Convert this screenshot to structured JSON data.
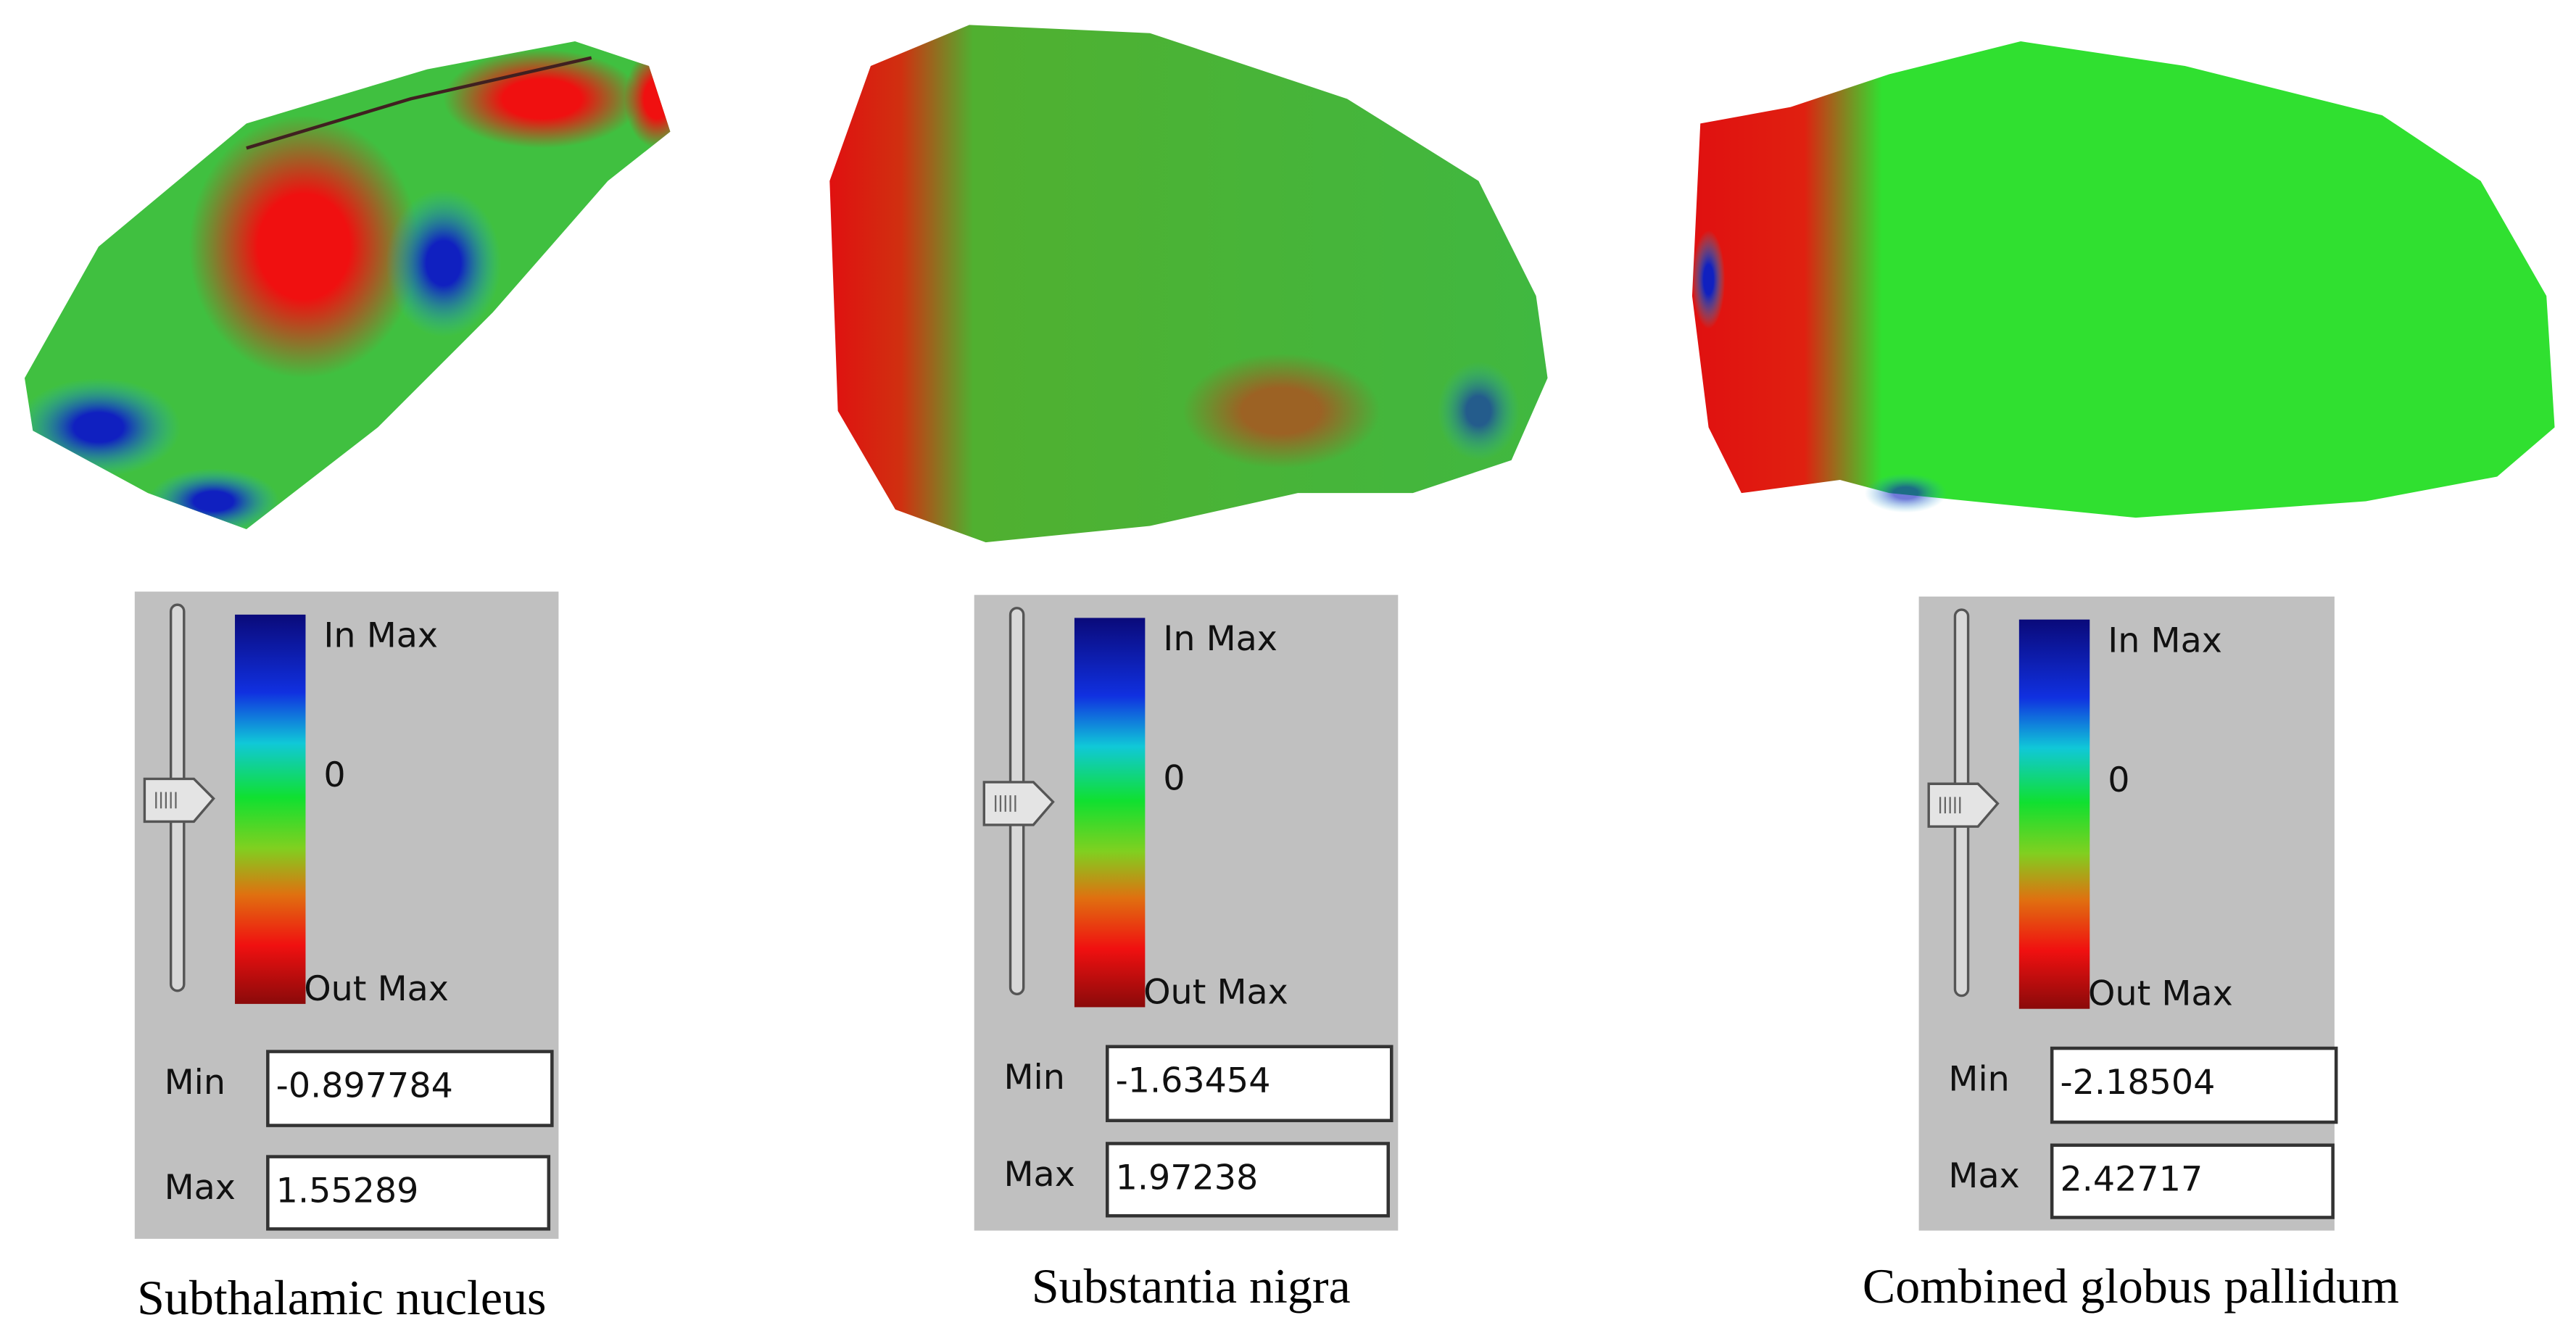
{
  "panels": [
    {
      "legend": {
        "top": "In Max",
        "middle": "0",
        "bottom": "Out Max"
      },
      "min_label": "Min",
      "min_value": "-0.897784",
      "max_label": "Max",
      "max_value": "1.55289",
      "caption": "Subthalamic nucleus"
    },
    {
      "legend": {
        "top": "In Max",
        "middle": "0",
        "bottom": "Out Max"
      },
      "min_label": "Min",
      "min_value": "-1.63454",
      "max_label": "Max",
      "max_value": "1.97238",
      "caption": "Substantia nigra"
    },
    {
      "legend": {
        "top": "In Max",
        "middle": "0",
        "bottom": "Out Max"
      },
      "min_label": "Min",
      "min_value": "-2.18504",
      "max_label": "Max",
      "max_value": "2.42717",
      "caption": "Combined globus pallidum"
    }
  ]
}
